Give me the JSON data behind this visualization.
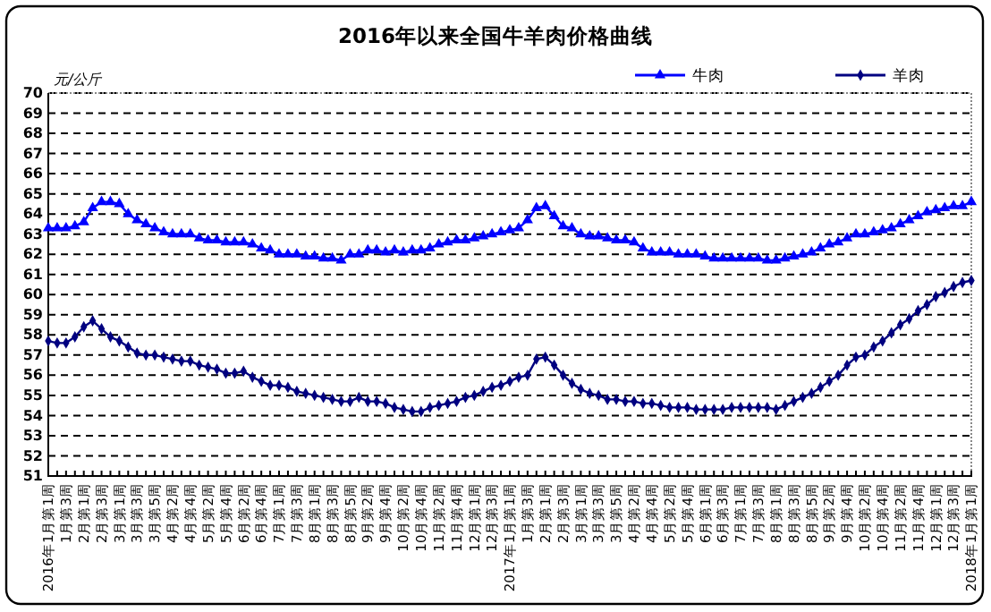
{
  "chart_data": {
    "type": "line",
    "title": "2016年以来全国牛羊肉价格曲线",
    "ylabel": "元/公斤",
    "categories": [
      "2016年1月第1周",
      null,
      "1月第3周",
      null,
      "2月第1周",
      null,
      "2月第3周",
      null,
      "3月第1周",
      null,
      "3月第3周",
      null,
      "3月第5周",
      null,
      "4月第2周",
      null,
      "4月第4周",
      null,
      "5月第2周",
      null,
      "5月第4周",
      null,
      "6月第2周",
      null,
      "6月第4周",
      null,
      "7月第1周",
      null,
      "7月第3周",
      null,
      "8月第1周",
      null,
      "8月第3周",
      null,
      "8月第5周",
      null,
      "9月第2周",
      null,
      "9月第4周",
      null,
      "10月第2周",
      null,
      "10月第4周",
      null,
      "11月第2周",
      null,
      "11月第4周",
      null,
      "12月第1周",
      null,
      "12月第3周",
      null,
      "2017年1月第1周",
      null,
      "1月第3周",
      null,
      "2月第1周",
      null,
      "2月第3周",
      null,
      "3月第1周",
      null,
      "3月第3周",
      null,
      "3月第5周",
      null,
      "4月第2周",
      null,
      "4月第4周",
      null,
      "5月第2周",
      null,
      "5月第4周",
      null,
      "6月第1周",
      null,
      "6月第3周",
      null,
      "7月第1周",
      null,
      "7月第3周",
      null,
      "8月第1周",
      null,
      "8月第3周",
      null,
      "8月第5周",
      null,
      "9月第2周",
      null,
      "9月第4周",
      null,
      "10月第2周",
      null,
      "10月第4周",
      null,
      "11月第2周",
      null,
      "11月第4周",
      null,
      "12月第1周",
      null,
      "12月第3周",
      null,
      "2018年1月第1周"
    ],
    "series": [
      {
        "name": "牛肉",
        "color": "#0000ff",
        "marker": "triangle",
        "values": [
          63.3,
          63.3,
          63.3,
          63.4,
          63.6,
          64.3,
          64.6,
          64.6,
          64.5,
          64.0,
          63.7,
          63.5,
          63.3,
          63.1,
          63.0,
          63.0,
          63.0,
          62.8,
          62.7,
          62.7,
          62.6,
          62.6,
          62.6,
          62.5,
          62.3,
          62.2,
          62.0,
          62.0,
          62.0,
          61.9,
          61.9,
          61.8,
          61.8,
          61.7,
          62.0,
          62.0,
          62.2,
          62.2,
          62.1,
          62.2,
          62.1,
          62.2,
          62.2,
          62.3,
          62.5,
          62.6,
          62.7,
          62.7,
          62.8,
          62.9,
          63.0,
          63.1,
          63.2,
          63.3,
          63.7,
          64.3,
          64.4,
          63.9,
          63.4,
          63.3,
          63.0,
          62.9,
          62.9,
          62.8,
          62.7,
          62.7,
          62.6,
          62.3,
          62.1,
          62.1,
          62.1,
          62.0,
          62.0,
          62.0,
          61.9,
          61.8,
          61.8,
          61.8,
          61.8,
          61.8,
          61.8,
          61.7,
          61.7,
          61.8,
          61.9,
          62.0,
          62.1,
          62.3,
          62.5,
          62.6,
          62.8,
          63.0,
          63.0,
          63.1,
          63.2,
          63.3,
          63.5,
          63.7,
          63.9,
          64.1,
          64.2,
          64.3,
          64.4,
          64.4,
          64.6
        ]
      },
      {
        "name": "羊肉",
        "color": "#000080",
        "marker": "diamond",
        "values": [
          57.7,
          57.6,
          57.6,
          57.9,
          58.4,
          58.7,
          58.3,
          57.9,
          57.7,
          57.4,
          57.1,
          57.0,
          57.0,
          56.9,
          56.8,
          56.7,
          56.7,
          56.5,
          56.4,
          56.3,
          56.1,
          56.1,
          56.2,
          55.9,
          55.7,
          55.5,
          55.5,
          55.4,
          55.2,
          55.1,
          55.0,
          54.9,
          54.8,
          54.7,
          54.7,
          54.9,
          54.7,
          54.7,
          54.6,
          54.4,
          54.3,
          54.2,
          54.2,
          54.4,
          54.5,
          54.6,
          54.7,
          54.9,
          55.0,
          55.2,
          55.4,
          55.5,
          55.7,
          55.9,
          56.0,
          56.8,
          56.9,
          56.5,
          56.0,
          55.6,
          55.3,
          55.1,
          55.0,
          54.8,
          54.8,
          54.7,
          54.7,
          54.6,
          54.6,
          54.5,
          54.4,
          54.4,
          54.4,
          54.3,
          54.3,
          54.3,
          54.3,
          54.4,
          54.4,
          54.4,
          54.4,
          54.4,
          54.3,
          54.5,
          54.7,
          54.9,
          55.1,
          55.4,
          55.7,
          56.0,
          56.5,
          56.9,
          57.0,
          57.4,
          57.7,
          58.1,
          58.5,
          58.8,
          59.2,
          59.5,
          59.9,
          60.1,
          60.4,
          60.6,
          60.7
        ]
      }
    ],
    "ylim": [
      51,
      70
    ],
    "yticks": [
      51,
      52,
      53,
      54,
      55,
      56,
      57,
      58,
      59,
      60,
      61,
      62,
      63,
      64,
      65,
      66,
      67,
      68,
      69,
      70
    ],
    "grid": "y",
    "legend": "top right",
    "line_style": "solid"
  }
}
